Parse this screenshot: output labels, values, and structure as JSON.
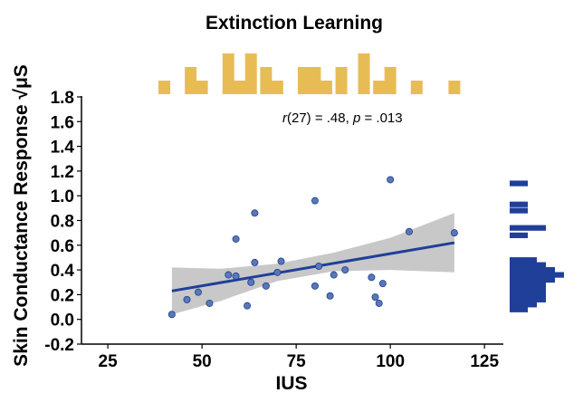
{
  "chart_data": {
    "type": "scatter",
    "title": "Extinction Learning",
    "xlabel": "IUS",
    "ylabel": "Skin Conductance Response √μS",
    "xlim": [
      18,
      130
    ],
    "ylim": [
      -0.2,
      1.8
    ],
    "x_ticks": [
      25,
      50,
      75,
      100,
      125
    ],
    "x_tick_labels": [
      "25",
      "50",
      "75",
      "100",
      "125"
    ],
    "y_ticks": [
      -0.2,
      0,
      0.2,
      0.4,
      0.6,
      0.8,
      1.0,
      1.2,
      1.4,
      1.6,
      1.8
    ],
    "y_tick_labels": [
      "-0.2",
      "0.0",
      "0.2",
      "0.4",
      "0.6",
      "0.8",
      "1.0",
      "1.2",
      "1.4",
      "1.6",
      "1.8"
    ],
    "annotation": {
      "r_symbol": "r",
      "r_rest": "(27) = .48, ",
      "p_symbol": "p",
      "p_rest": " = .013"
    },
    "points": [
      {
        "x": 42,
        "y": 0.04
      },
      {
        "x": 46,
        "y": 0.16
      },
      {
        "x": 49,
        "y": 0.22
      },
      {
        "x": 52,
        "y": 0.13
      },
      {
        "x": 57,
        "y": 0.36
      },
      {
        "x": 59,
        "y": 0.35
      },
      {
        "x": 59,
        "y": 0.65
      },
      {
        "x": 62,
        "y": 0.11
      },
      {
        "x": 63,
        "y": 0.3
      },
      {
        "x": 64,
        "y": 0.46
      },
      {
        "x": 64,
        "y": 0.86
      },
      {
        "x": 67,
        "y": 0.27
      },
      {
        "x": 70,
        "y": 0.38
      },
      {
        "x": 71,
        "y": 0.47
      },
      {
        "x": 80,
        "y": 0.27
      },
      {
        "x": 80,
        "y": 0.96
      },
      {
        "x": 81,
        "y": 0.43
      },
      {
        "x": 84,
        "y": 0.19
      },
      {
        "x": 85,
        "y": 0.36
      },
      {
        "x": 88,
        "y": 0.4
      },
      {
        "x": 95,
        "y": 0.34
      },
      {
        "x": 96,
        "y": 0.18
      },
      {
        "x": 97,
        "y": 0.13
      },
      {
        "x": 98,
        "y": 0.29
      },
      {
        "x": 100,
        "y": 1.13
      },
      {
        "x": 105,
        "y": 0.71
      },
      {
        "x": 117,
        "y": 0.7
      }
    ],
    "regression": {
      "x": [
        42,
        117
      ],
      "y": [
        0.23,
        0.62
      ]
    },
    "confidence_band": {
      "x": [
        42,
        55,
        70,
        85,
        100,
        117
      ],
      "upper": [
        0.42,
        0.41,
        0.45,
        0.54,
        0.66,
        0.86
      ],
      "lower": [
        0.04,
        0.15,
        0.31,
        0.39,
        0.4,
        0.38
      ]
    },
    "marginal_x": {
      "bins": [
        40,
        47,
        50,
        57,
        60,
        63,
        67,
        70,
        77,
        80,
        83,
        87,
        93,
        97,
        100,
        107,
        117
      ],
      "counts": [
        1,
        2,
        1,
        3,
        1,
        3,
        2,
        1,
        2,
        2,
        1,
        2,
        3,
        1,
        2,
        1,
        1
      ]
    },
    "marginal_y": {
      "bins": [
        1.1,
        0.93,
        0.88,
        0.74,
        0.68,
        0.48,
        0.44,
        0.4,
        0.36,
        0.32,
        0.28,
        0.24,
        0.2,
        0.16,
        0.12,
        0.08
      ],
      "counts": [
        2,
        2,
        2,
        4,
        2,
        3,
        4,
        5,
        6,
        5,
        4,
        4,
        4,
        4,
        3,
        2
      ]
    },
    "colors": {
      "points_fill": "#5a77b8",
      "points_stroke": "#1f3f8a",
      "regression": "#1f3f99",
      "band": "#c8c8c8",
      "marginal_x": "#e8bc55",
      "marginal_y": "#1f3f99",
      "axes": "#000000"
    },
    "grid": false
  }
}
